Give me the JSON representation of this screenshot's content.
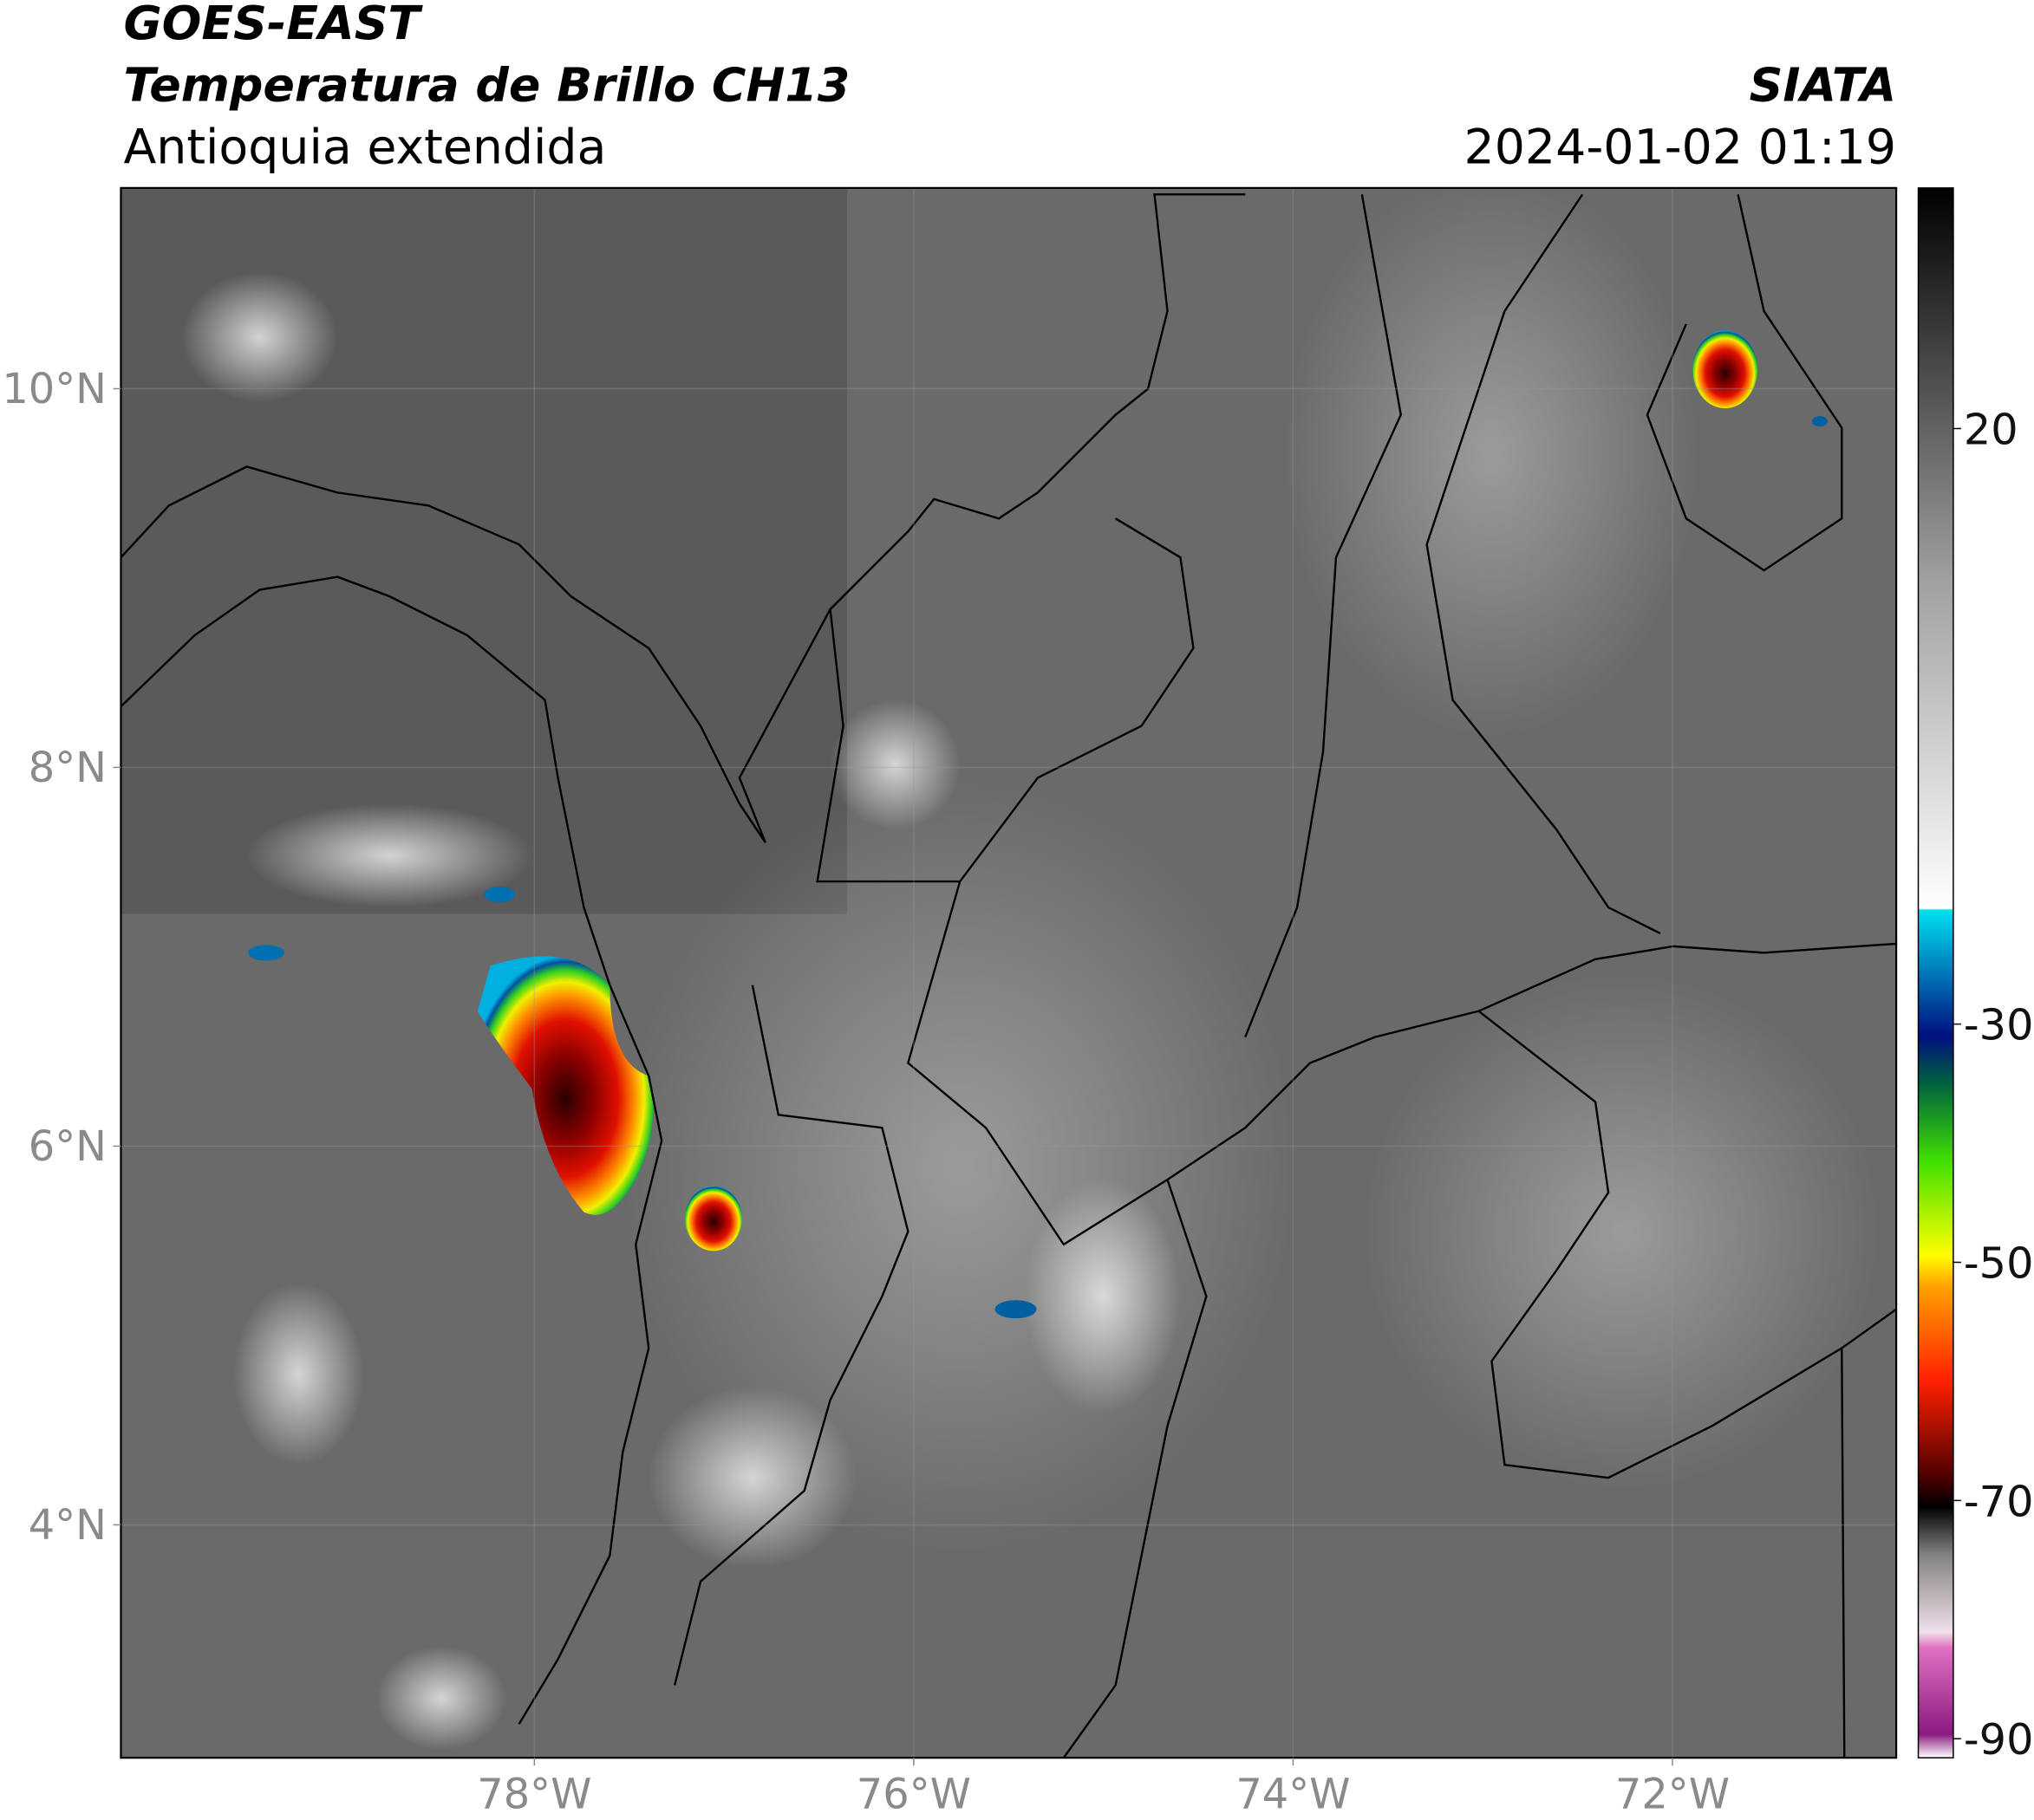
{
  "header": {
    "satellite": "GOES-EAST",
    "product": "Temperatura de Brillo CH13",
    "region": "Antioquia extendida",
    "source": "SIATA",
    "datetime": "2024-01-02 01:19"
  },
  "map": {
    "xlim": [
      -80.18,
      -70.82
    ],
    "ylim": [
      2.77,
      11.06
    ],
    "xticks": [
      {
        "value": -78,
        "label": "78°W"
      },
      {
        "value": -76,
        "label": "76°W"
      },
      {
        "value": -74,
        "label": "74°W"
      },
      {
        "value": -72,
        "label": "72°W"
      }
    ],
    "yticks": [
      {
        "value": 10,
        "label": "10°N"
      },
      {
        "value": 8,
        "label": "8°N"
      },
      {
        "value": 6,
        "label": "6°N"
      },
      {
        "value": 4,
        "label": "4°N"
      }
    ],
    "grid": true
  },
  "colorbar": {
    "lim": [
      -91.6,
      40.2
    ],
    "ticks": [
      20,
      -30,
      -50,
      -70,
      -90
    ]
  }
}
